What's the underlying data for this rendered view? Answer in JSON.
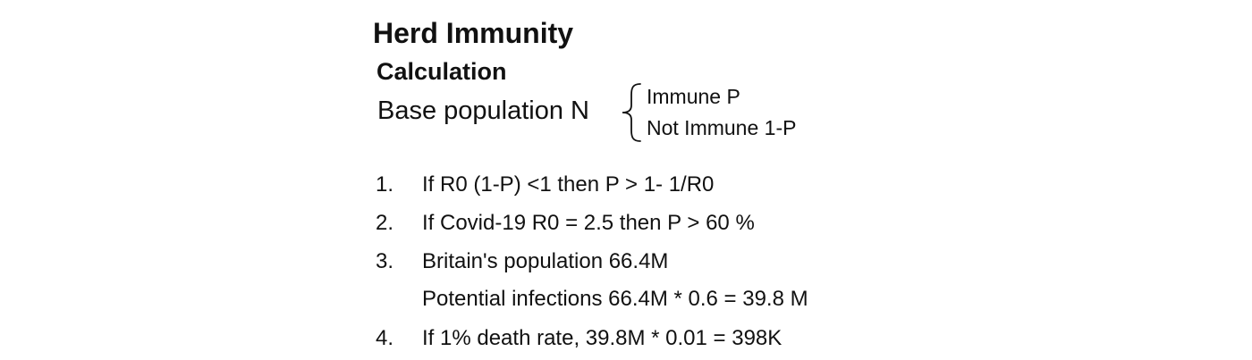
{
  "title": "Herd Immunity",
  "subtitle": "Calculation",
  "base": {
    "label": "Base population N",
    "immune": "Immune P",
    "not_immune": "Not Immune 1-P"
  },
  "list": [
    {
      "num": "1.",
      "lines": [
        "If R0 (1-P) <1 then P > 1- 1/R0"
      ]
    },
    {
      "num": "2.",
      "lines": [
        "If Covid-19 R0 = 2.5 then P > 60 %"
      ]
    },
    {
      "num": "3.",
      "lines": [
        "Britain's population 66.4M",
        "Potential infections 66.4M * 0.6 = 39.8 M"
      ]
    },
    {
      "num": "4.",
      "lines": [
        "If 1% death rate, 39.8M * 0.01 = 398K"
      ]
    }
  ]
}
